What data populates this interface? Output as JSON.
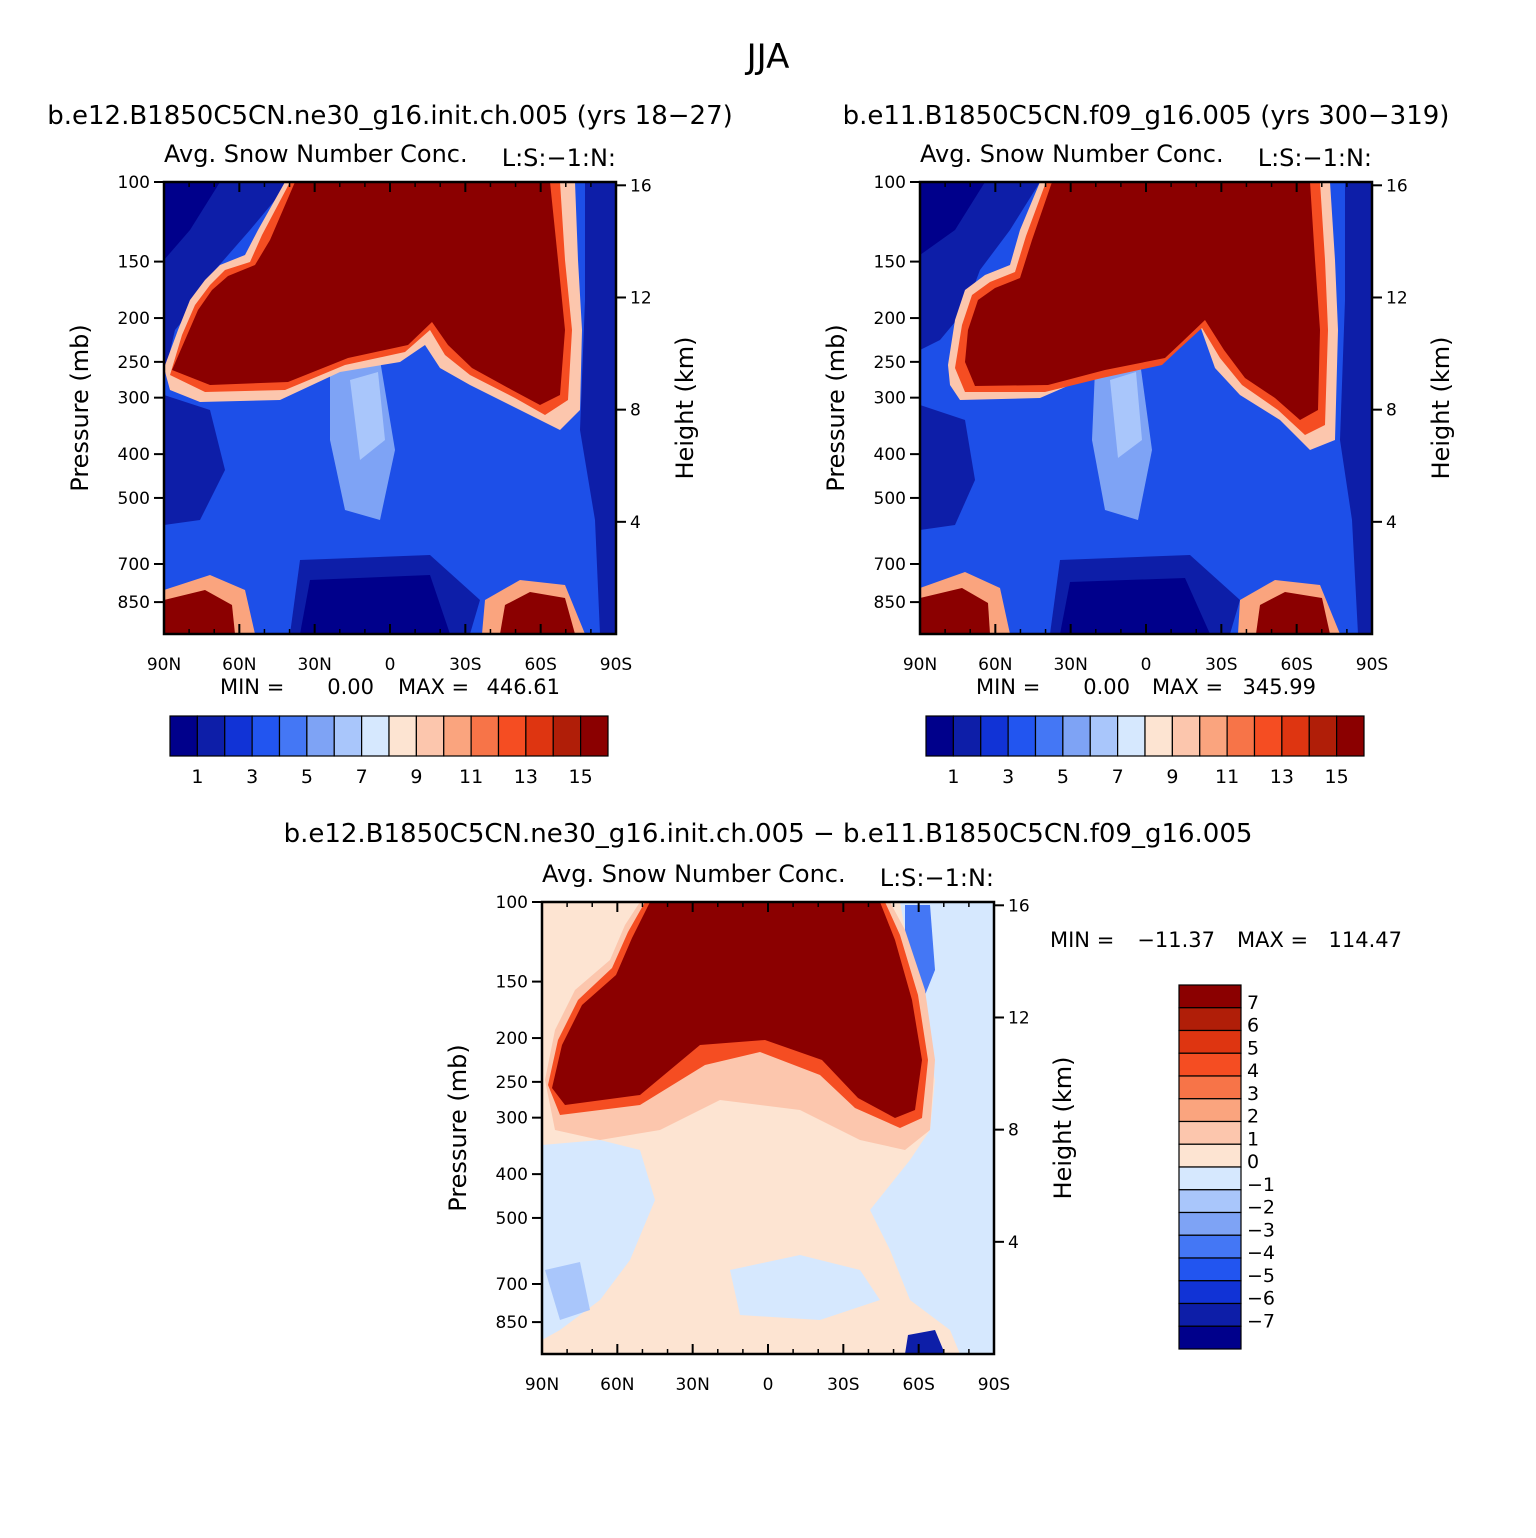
{
  "title": "JJA",
  "chart_data": [
    {
      "type": "heatmap",
      "case_title": "b.e12.B1850C5CN.ne30_g16.init.ch.005 (yrs 18-27)",
      "subtitle": "Avg. Snow Number Conc.",
      "right_label": "L:S:-1:N:",
      "xlabel": "",
      "ylabel": "Pressure (mb)",
      "y2label": "Height (km)",
      "x_ticks": [
        "90N",
        "60N",
        "30N",
        "0",
        "30S",
        "60S",
        "90S"
      ],
      "y_ticks": [
        100,
        150,
        200,
        250,
        300,
        400,
        500,
        700,
        850
      ],
      "y2_ticks": [
        16,
        12,
        8,
        4
      ],
      "ylim": [
        1000,
        100
      ],
      "min_label": "MIN =",
      "min_value": "0.00",
      "max_label": "MAX =",
      "max_value": "446.61",
      "colorbar_ticks": [
        "1",
        "3",
        "5",
        "7",
        "9",
        "11",
        "13",
        "15"
      ]
    },
    {
      "type": "heatmap",
      "case_title": "b.e11.B1850C5CN.f09_g16.005 (yrs 300-319)",
      "subtitle": "Avg. Snow Number Conc.",
      "right_label": "L:S:-1:N:",
      "xlabel": "",
      "ylabel": "Pressure (mb)",
      "y2label": "Height (km)",
      "x_ticks": [
        "90N",
        "60N",
        "30N",
        "0",
        "30S",
        "60S",
        "90S"
      ],
      "y_ticks": [
        100,
        150,
        200,
        250,
        300,
        400,
        500,
        700,
        850
      ],
      "y2_ticks": [
        16,
        12,
        8,
        4
      ],
      "ylim": [
        1000,
        100
      ],
      "min_label": "MIN =",
      "min_value": "0.00",
      "max_label": "MAX =",
      "max_value": "345.99",
      "colorbar_ticks": [
        "1",
        "3",
        "5",
        "7",
        "9",
        "11",
        "13",
        "15"
      ]
    },
    {
      "type": "heatmap",
      "case_title": "b.e12.B1850C5CN.ne30_g16.init.ch.005 - b.e11.B1850C5CN.f09_g16.005",
      "subtitle": "Avg. Snow Number Conc.",
      "right_label": "L:S:-1:N:",
      "xlabel": "",
      "ylabel": "Pressure (mb)",
      "y2label": "Height (km)",
      "x_ticks": [
        "90N",
        "60N",
        "30N",
        "0",
        "30S",
        "60S",
        "90S"
      ],
      "y_ticks": [
        100,
        150,
        200,
        250,
        300,
        400,
        500,
        700,
        850
      ],
      "y2_ticks": [
        16,
        12,
        8,
        4
      ],
      "ylim": [
        1000,
        100
      ],
      "min_label": "MIN =",
      "min_value": "-11.37",
      "max_label": "MAX =",
      "max_value": "114.47",
      "colorbar_ticks": [
        "7",
        "6",
        "5",
        "4",
        "3",
        "2",
        "1",
        "0",
        "-1",
        "-2",
        "-3",
        "-4",
        "-5",
        "-6",
        "-7"
      ]
    }
  ],
  "colors": {
    "scale16": [
      "#00008b",
      "#0d1ea8",
      "#1133d6",
      "#2255f0",
      "#4477f5",
      "#7ea3f5",
      "#a9c6fb",
      "#d6e8fe",
      "#fde4d2",
      "#fcc6ad",
      "#faa47e",
      "#f77448",
      "#f54d22",
      "#de3511",
      "#b01e08",
      "#8b0000"
    ],
    "diff_pos": [
      "#8b0000",
      "#b01e08",
      "#de3511",
      "#f54d22",
      "#f77448",
      "#faa47e",
      "#fcc6ad",
      "#fde4d2"
    ],
    "diff_neg": [
      "#d6e8fe",
      "#a9c6fb",
      "#7ea3f5",
      "#4477f5",
      "#2255f0",
      "#1133d6",
      "#0d1ea8",
      "#00008b"
    ]
  }
}
